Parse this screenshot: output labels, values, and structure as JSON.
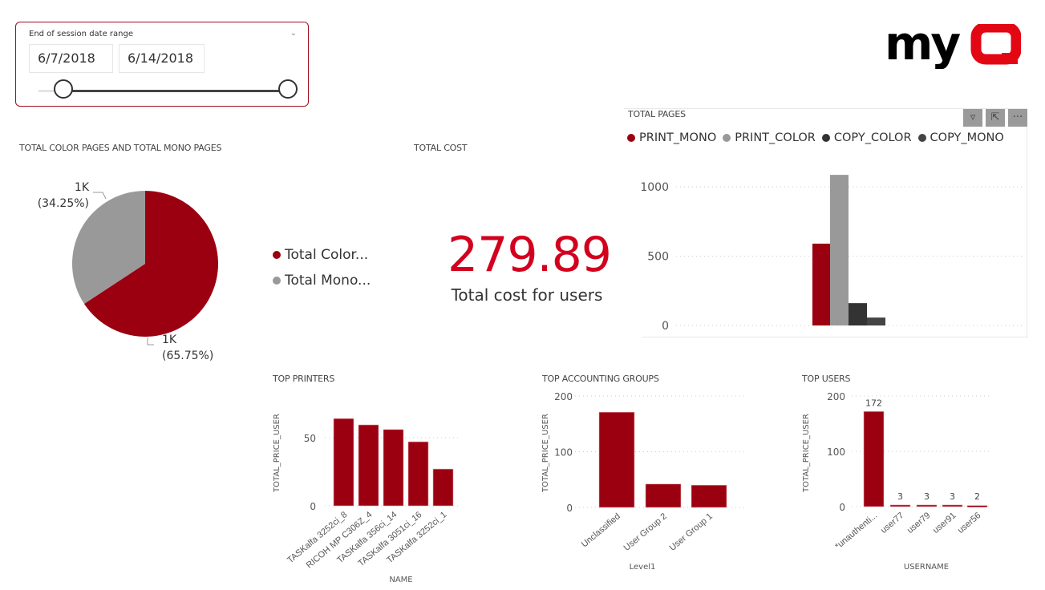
{
  "slicer": {
    "label": "End of session date range",
    "start": "6/7/2018",
    "end": "6/14/2018",
    "range_fraction": [
      0.1,
      1.0
    ]
  },
  "logo": {
    "text_black": "my",
    "text_red": "Q"
  },
  "colors": {
    "accent": "#9b0011",
    "kpi": "#d2001e",
    "grey": "#999999",
    "dark": "#333333",
    "darker": "#444444"
  },
  "pie": {
    "title": "TOTAL COLOR PAGES AND TOTAL MONO PAGES",
    "legend": [
      {
        "label": "Total Color...",
        "color": "#9b0011"
      },
      {
        "label": "Total Mono...",
        "color": "#999999"
      }
    ],
    "labels": [
      {
        "value": "1K",
        "pct": "(65.75%)"
      },
      {
        "value": "1K",
        "pct": "(34.25%)"
      }
    ]
  },
  "kpi": {
    "title": "TOTAL COST",
    "value": "279.89",
    "label": "Total cost for users"
  },
  "visual_buttons": {
    "filter": "filter-icon",
    "focus": "focus-mode-icon",
    "more": "more-options-icon"
  },
  "chart_data": [
    {
      "type": "pie",
      "title": "TOTAL COLOR PAGES AND TOTAL MONO PAGES",
      "slices": [
        {
          "name": "Total Color...",
          "percent": 65.75,
          "label": "1K",
          "color": "#9b0011"
        },
        {
          "name": "Total Mono...",
          "percent": 34.25,
          "label": "1K",
          "color": "#999999"
        }
      ]
    },
    {
      "type": "bar",
      "title": "TOTAL PAGES",
      "categories": [
        ""
      ],
      "series": [
        {
          "name": "PRINT_MONO",
          "values": [
            590
          ],
          "color": "#9b0011"
        },
        {
          "name": "PRINT_COLOR",
          "values": [
            1086
          ],
          "color": "#999999"
        },
        {
          "name": "COPY_COLOR",
          "values": [
            161
          ],
          "color": "#333333"
        },
        {
          "name": "COPY_MONO",
          "values": [
            57
          ],
          "color": "#444444"
        }
      ],
      "ylim": [
        0,
        1150
      ],
      "yticks": [
        "0",
        "500",
        "1000"
      ],
      "ytick_values": [
        0,
        500,
        1000
      ],
      "grid": true,
      "legend": "top-left"
    },
    {
      "type": "bar",
      "title": "TOP PRINTERS",
      "xlabel": "NAME",
      "ylabel": "TOTAL_PRICE_USER",
      "categories": [
        "TASKalfa 3252ci_8",
        "RICOH MP C306Z_4",
        "TASKalfa 356ci_14",
        "TASKalfa 3051ci_16",
        "TASKalfa 3252ci_1"
      ],
      "values": [
        64,
        59.4,
        56,
        47,
        27
      ],
      "ylim": [
        0,
        70
      ],
      "yticks": [
        "0",
        "50"
      ],
      "ytick_values": [
        0,
        50
      ],
      "grid": true,
      "color": "#9b0011"
    },
    {
      "type": "bar",
      "title": "TOP ACCOUNTING GROUPS",
      "xlabel": "Level1",
      "ylabel": "TOTAL_PRICE_USER",
      "categories": [
        "Unclassified",
        "User Group 2",
        "User Group 1"
      ],
      "values": [
        171,
        42,
        40
      ],
      "ylim": [
        0,
        200
      ],
      "yticks": [
        "0",
        "100",
        "200"
      ],
      "ytick_values": [
        0,
        100,
        200
      ],
      "grid": true,
      "color": "#9b0011"
    },
    {
      "type": "bar",
      "title": "TOP USERS",
      "xlabel": "USERNAME",
      "ylabel": "TOTAL_PRICE_USER",
      "categories": [
        "*unauthenti...",
        "user77",
        "user79",
        "user91",
        "user56"
      ],
      "values": [
        172,
        3,
        3,
        3,
        2
      ],
      "data_labels": [
        "172",
        "3",
        "3",
        "3",
        "2"
      ],
      "ylim": [
        0,
        200
      ],
      "yticks": [
        "0",
        "100",
        "200"
      ],
      "ytick_values": [
        0,
        100,
        200
      ],
      "grid": true,
      "color": "#9b0011"
    }
  ]
}
